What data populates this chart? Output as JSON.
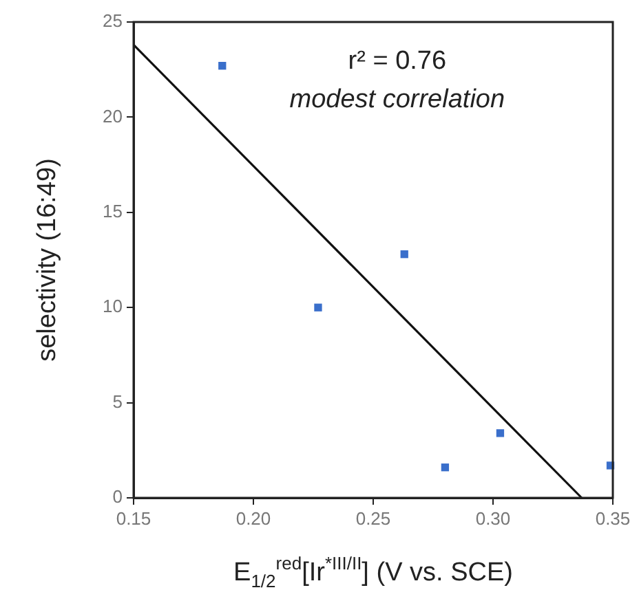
{
  "chart_data": {
    "type": "scatter",
    "xlabel": "E$_{1/2}$$^{red}$[Ir$^{*III/II}$] (V vs. SCE)",
    "ylabel": "selectivity (16:49)",
    "x": [
      0.187,
      0.227,
      0.263,
      0.28,
      0.303,
      0.349
    ],
    "series": [
      {
        "color": "#3a6fcb",
        "marker": "square",
        "values": [
          22.7,
          10.0,
          12.8,
          1.6,
          3.4,
          1.7
        ]
      },
      {
        "type": "line",
        "color": "#111111",
        "marker": "none",
        "line_style": "solid",
        "x": [
          0.15,
          0.337
        ],
        "values": [
          23.8,
          0
        ]
      }
    ],
    "xlim": [
      0.15,
      0.35
    ],
    "xticks": [
      {
        "value": 0.15,
        "label": "0.15"
      },
      {
        "value": 0.2,
        "label": "0.20"
      },
      {
        "value": 0.25,
        "label": "0.25"
      },
      {
        "value": 0.3,
        "label": "0.30"
      },
      {
        "value": 0.35,
        "label": "0.35"
      }
    ],
    "ylim": [
      0,
      25
    ],
    "yticks": [
      0,
      5,
      10,
      15,
      20,
      25
    ],
    "grid": false,
    "legend": false,
    "annotations": [
      "r² = 0.76",
      "modest correlation"
    ]
  }
}
